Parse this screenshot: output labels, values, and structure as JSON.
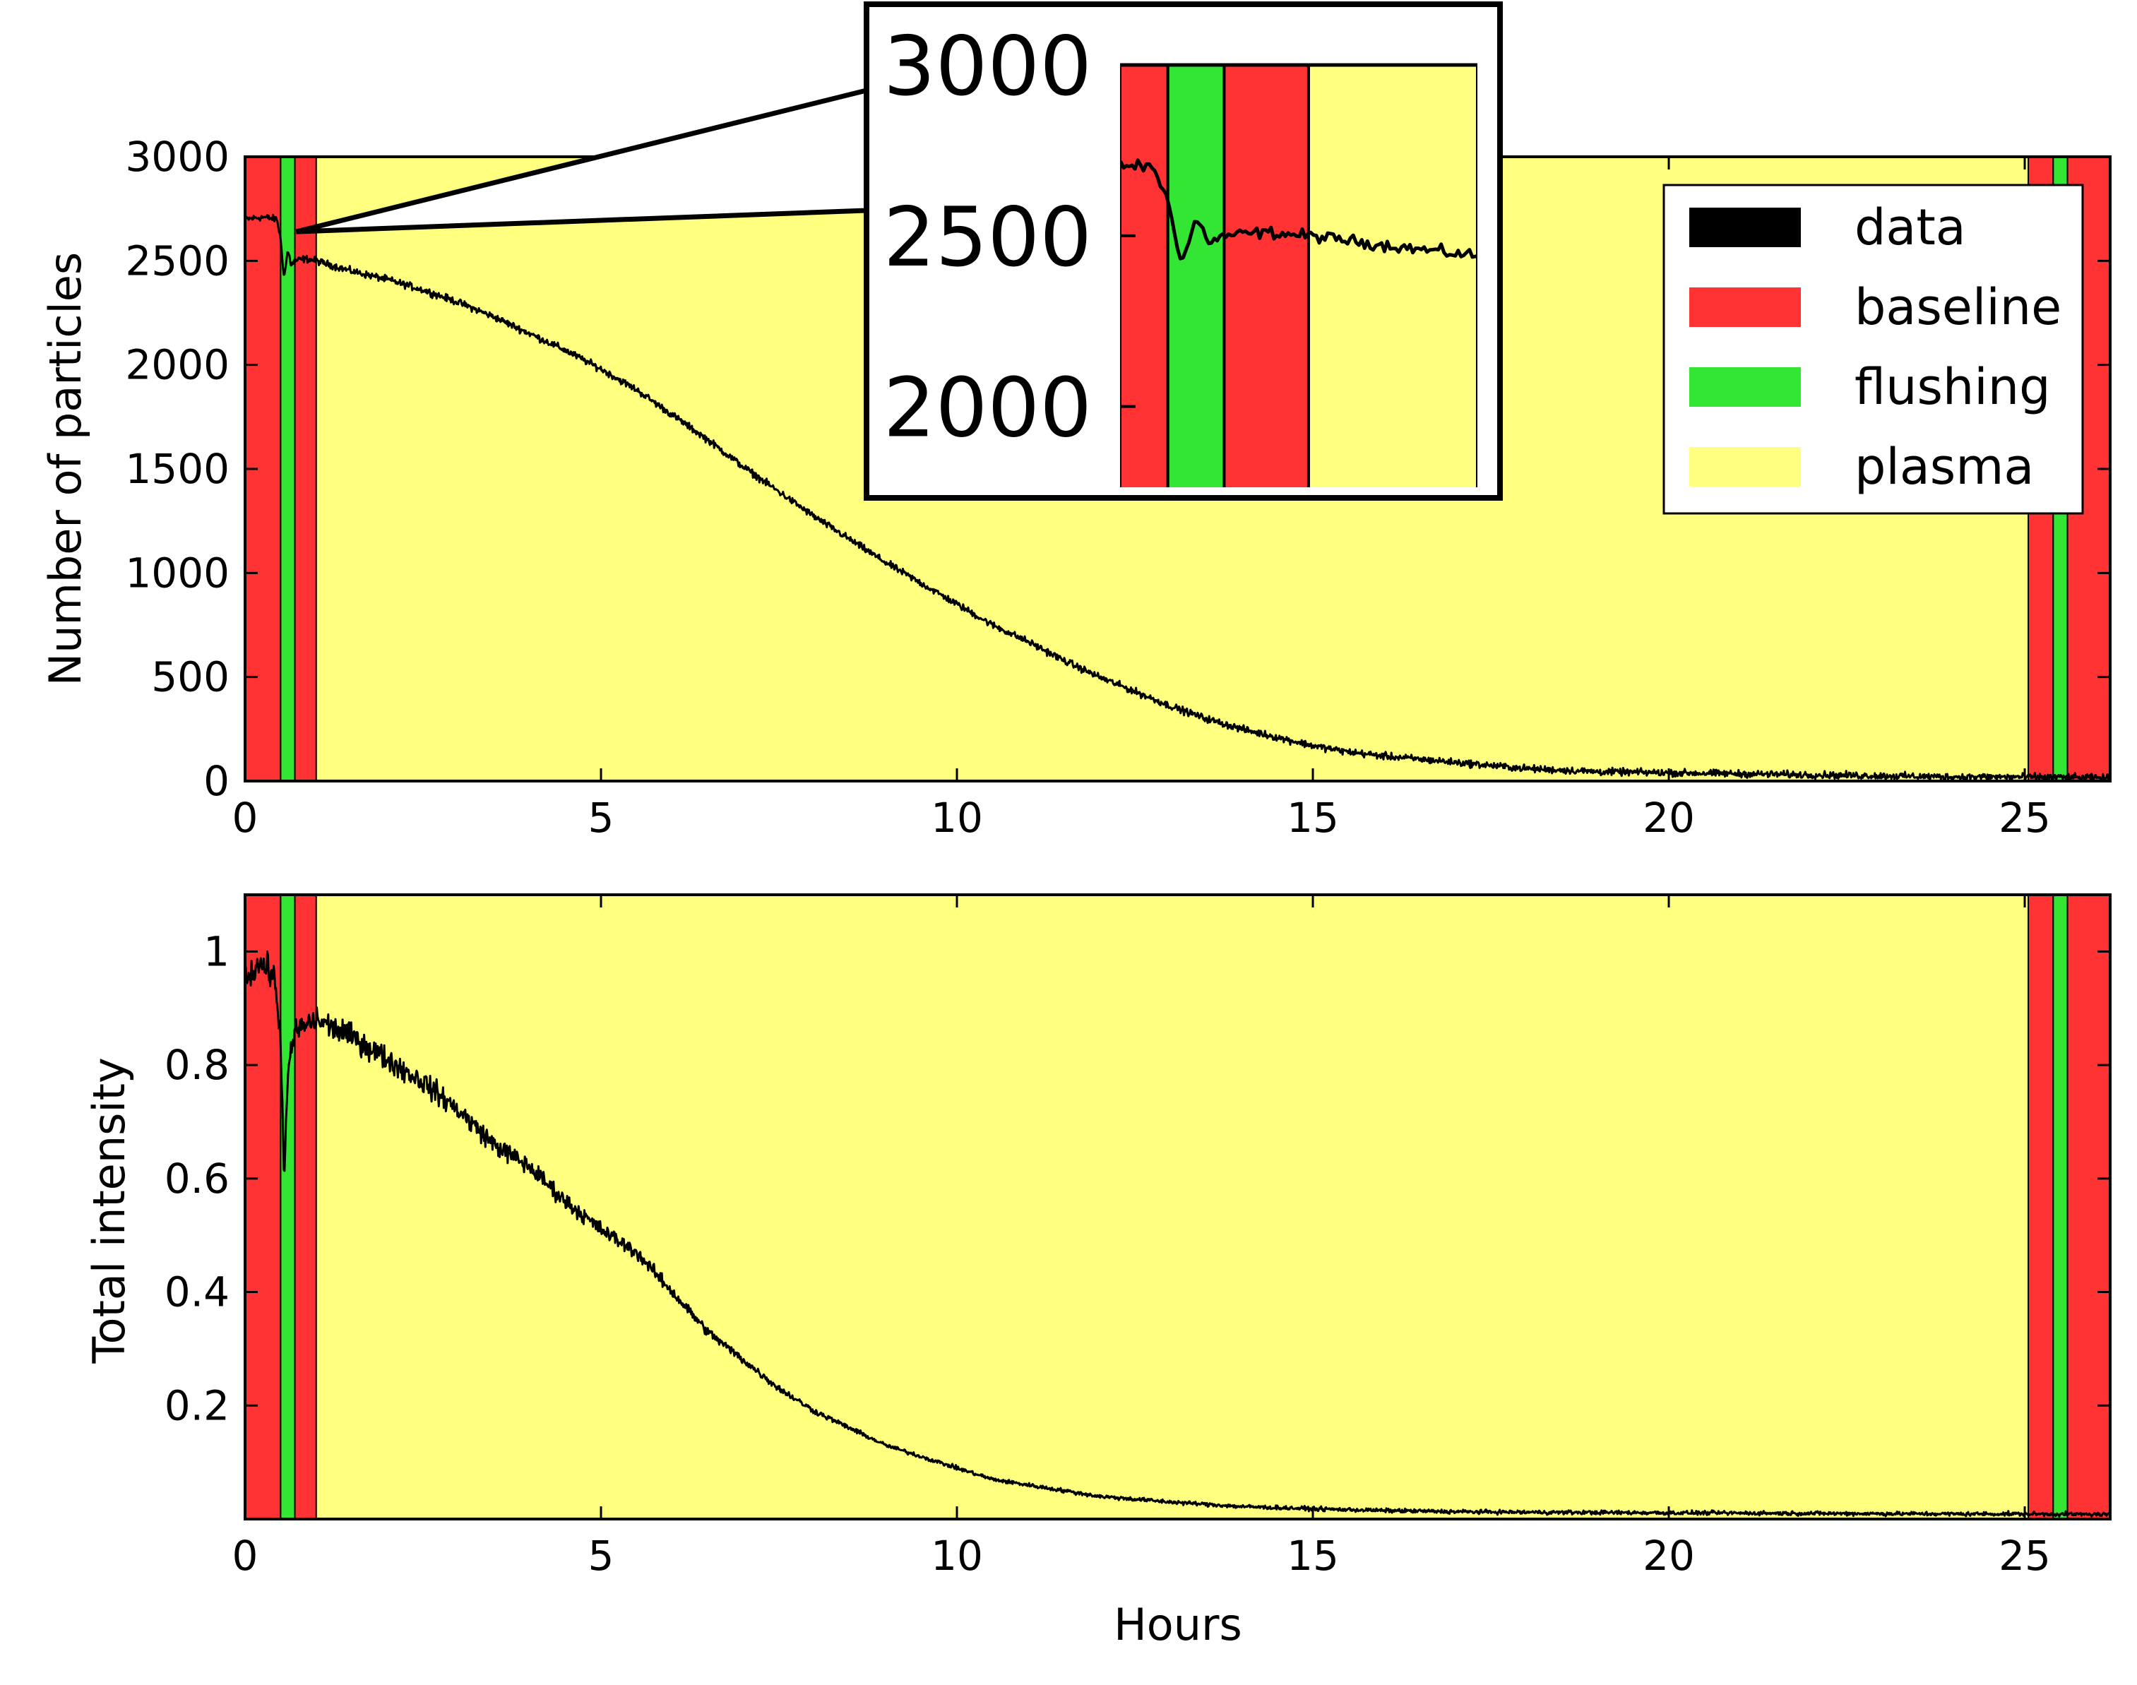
{
  "colors": {
    "baseline": "#ff3333",
    "flushing": "#33e633",
    "plasma": "#ffff80",
    "data": "#000000"
  },
  "chart_data": [
    {
      "id": "top",
      "type": "line",
      "title": "",
      "xlabel": "",
      "ylabel": "Number of particles",
      "xlim": [
        0,
        26.2
      ],
      "ylim": [
        0,
        3000
      ],
      "xticks": [
        0,
        5,
        10,
        15,
        20,
        25
      ],
      "yticks": [
        0,
        500,
        1000,
        1500,
        2000,
        2500,
        3000
      ],
      "grid": false,
      "legend": {
        "position": "top-right",
        "entries": [
          {
            "name": "data",
            "color": "#000000"
          },
          {
            "name": "baseline",
            "color": "#ff3333"
          },
          {
            "name": "flushing",
            "color": "#33e633"
          },
          {
            "name": "plasma",
            "color": "#ffff80"
          }
        ]
      },
      "phases": [
        {
          "phase": "baseline",
          "start": 0.0,
          "end": 0.5
        },
        {
          "phase": "flushing",
          "start": 0.5,
          "end": 0.7
        },
        {
          "phase": "baseline",
          "start": 0.7,
          "end": 1.0
        },
        {
          "phase": "plasma",
          "start": 1.0,
          "end": 25.05
        },
        {
          "phase": "baseline",
          "start": 25.05,
          "end": 25.4
        },
        {
          "phase": "flushing",
          "start": 25.4,
          "end": 25.6
        },
        {
          "phase": "baseline",
          "start": 25.6,
          "end": 26.2
        }
      ],
      "series": [
        {
          "x": [
            0,
            0.25,
            0.45,
            0.5,
            0.55,
            0.6,
            0.65,
            0.7,
            0.85,
            1.0,
            1.5,
            2.0,
            2.5,
            3.0,
            3.5,
            4.0,
            4.5,
            5.0,
            5.5,
            6.0,
            6.5,
            7.0,
            7.5,
            8.0,
            8.5,
            9.0,
            9.5,
            10.0,
            10.5,
            11.0,
            11.5,
            12.0,
            12.5,
            13.0,
            13.5,
            14.0,
            14.5,
            15.0,
            15.5,
            16.0,
            17.0,
            18.0,
            19.0,
            20.0,
            21.0,
            22.0,
            23.0,
            24.0,
            25.0,
            26.2
          ],
          "y": [
            2700,
            2710,
            2700,
            2600,
            2420,
            2550,
            2480,
            2500,
            2510,
            2500,
            2450,
            2410,
            2360,
            2300,
            2230,
            2150,
            2070,
            1980,
            1880,
            1760,
            1640,
            1510,
            1390,
            1270,
            1160,
            1050,
            950,
            850,
            750,
            670,
            580,
            500,
            430,
            360,
            300,
            250,
            210,
            170,
            140,
            120,
            90,
            60,
            45,
            40,
            35,
            30,
            25,
            20,
            20,
            15
          ],
          "noise": 25
        }
      ]
    },
    {
      "id": "bottom",
      "type": "line",
      "title": "",
      "xlabel": "Hours",
      "ylabel": "Total intensity",
      "xlim": [
        0,
        26.2
      ],
      "ylim": [
        0,
        1.1
      ],
      "xticks": [
        0,
        5,
        10,
        15,
        20,
        25
      ],
      "yticks": [
        0.2,
        0.4,
        0.6,
        0.8,
        1.0
      ],
      "grid": false,
      "phases": [
        {
          "phase": "baseline",
          "start": 0.0,
          "end": 0.5
        },
        {
          "phase": "flushing",
          "start": 0.5,
          "end": 0.7
        },
        {
          "phase": "baseline",
          "start": 0.7,
          "end": 1.0
        },
        {
          "phase": "plasma",
          "start": 1.0,
          "end": 25.05
        },
        {
          "phase": "baseline",
          "start": 25.05,
          "end": 25.4
        },
        {
          "phase": "flushing",
          "start": 25.4,
          "end": 25.6
        },
        {
          "phase": "baseline",
          "start": 25.6,
          "end": 26.2
        }
      ],
      "series": [
        {
          "x": [
            0,
            0.2,
            0.4,
            0.5,
            0.55,
            0.6,
            0.7,
            0.85,
            1.0,
            1.5,
            2.0,
            2.5,
            3.0,
            3.5,
            4.0,
            4.5,
            5.0,
            5.5,
            6.0,
            6.5,
            7.0,
            7.5,
            8.0,
            8.5,
            9.0,
            9.5,
            10.0,
            10.5,
            11.0,
            11.5,
            12.0,
            13.0,
            14.0,
            15.0,
            16.0,
            17.0,
            18.0,
            20.0,
            22.0,
            24.0,
            25.0,
            26.2
          ],
          "y": [
            0.95,
            0.98,
            0.96,
            0.85,
            0.6,
            0.78,
            0.86,
            0.87,
            0.88,
            0.85,
            0.81,
            0.77,
            0.72,
            0.66,
            0.62,
            0.56,
            0.51,
            0.47,
            0.4,
            0.33,
            0.28,
            0.23,
            0.19,
            0.16,
            0.13,
            0.11,
            0.09,
            0.07,
            0.06,
            0.05,
            0.04,
            0.03,
            0.022,
            0.018,
            0.015,
            0.013,
            0.012,
            0.011,
            0.01,
            0.009,
            0.009,
            0.008
          ],
          "noise": 0.035
        }
      ]
    }
  ],
  "inset": {
    "source_chart": "top",
    "xlim": [
      0.33,
      1.6
    ],
    "ylim": [
      1900,
      3000
    ],
    "yticks": [
      2000,
      2500,
      3000
    ],
    "zoom_point": {
      "x": 0.72,
      "y": 2640
    }
  }
}
